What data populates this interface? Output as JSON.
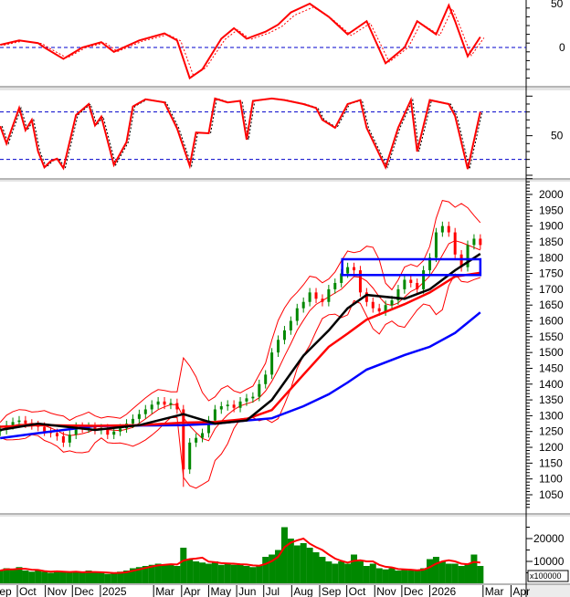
{
  "chart_data": [
    {
      "type": "candlestick",
      "panel": "price",
      "dates": [
        "2024-09-12",
        "2024-09-19",
        "2024-09-26",
        "2024-10-03",
        "2024-10-10",
        "2024-10-17",
        "2024-10-24",
        "2024-10-31",
        "2024-11-07",
        "2024-11-14",
        "2024-11-21",
        "2024-11-28",
        "2024-12-05",
        "2024-12-12",
        "2024-12-19",
        "2024-12-26",
        "2025-01-02",
        "2025-01-09",
        "2025-01-16",
        "2025-01-23",
        "2025-01-30",
        "2025-02-06",
        "2025-02-13",
        "2025-02-20",
        "2025-02-27",
        "2025-03-06",
        "2025-03-13",
        "2025-03-20",
        "2025-03-27",
        "2025-04-03",
        "2025-04-10",
        "2025-04-17",
        "2025-04-24",
        "2025-05-01",
        "2025-05-08",
        "2025-05-15",
        "2025-05-22",
        "2025-05-29",
        "2025-06-05",
        "2025-06-12",
        "2025-06-19",
        "2025-06-26",
        "2025-07-03",
        "2025-07-10",
        "2025-07-17",
        "2025-07-24",
        "2025-07-31",
        "2025-08-07",
        "2025-08-14",
        "2025-08-21",
        "2025-08-28",
        "2025-09-04",
        "2025-09-11",
        "2025-09-18",
        "2025-09-25",
        "2025-10-02",
        "2025-10-09",
        "2025-10-16",
        "2025-10-23",
        "2025-10-30",
        "2025-11-06",
        "2025-11-13",
        "2025-11-20",
        "2025-11-27",
        "2025-12-04",
        "2025-12-11",
        "2025-12-18",
        "2025-12-25",
        "2026-01-01",
        "2026-01-08",
        "2026-01-15",
        "2026-01-22",
        "2026-01-29",
        "2026-02-05",
        "2026-02-12",
        "2026-02-19",
        "2026-02-26"
      ],
      "close": [
        1255,
        1270,
        1280,
        1285,
        1275,
        1270,
        1265,
        1250,
        1245,
        1235,
        1215,
        1240,
        1265,
        1260,
        1265,
        1255,
        1260,
        1240,
        1250,
        1260,
        1275,
        1290,
        1305,
        1320,
        1335,
        1345,
        1335,
        1340,
        1320,
        1130,
        1215,
        1230,
        1245,
        1285,
        1320,
        1330,
        1335,
        1325,
        1345,
        1355,
        1360,
        1400,
        1430,
        1500,
        1540,
        1570,
        1600,
        1640,
        1660,
        1690,
        1670,
        1660,
        1700,
        1720,
        1750,
        1770,
        1760,
        1690,
        1660,
        1640,
        1630,
        1650,
        1665,
        1700,
        1730,
        1720,
        1700,
        1760,
        1800,
        1880,
        1900,
        1880,
        1810,
        1770,
        1840,
        1860,
        1840
      ],
      "moving_averages": [
        {
          "color": "#000000",
          "points": [
            [
              "2024-09-12",
              1255
            ],
            [
              "2024-10-24",
              1275
            ],
            [
              "2024-12-26",
              1255
            ],
            [
              "2025-02-13",
              1270
            ],
            [
              "2025-04-03",
              1305
            ],
            [
              "2025-05-08",
              1275
            ],
            [
              "2025-06-12",
              1285
            ],
            [
              "2025-07-10",
              1350
            ],
            [
              "2025-08-14",
              1490
            ],
            [
              "2025-09-11",
              1570
            ],
            [
              "2025-10-02",
              1640
            ],
            [
              "2025-10-23",
              1682
            ],
            [
              "2025-12-04",
              1670
            ],
            [
              "2026-01-01",
              1700
            ],
            [
              "2026-01-29",
              1760
            ],
            [
              "2026-02-26",
              1812
            ]
          ]
        },
        {
          "color": "#ff0000",
          "points": [
            [
              "2024-09-12",
              1265
            ],
            [
              "2024-10-24",
              1270
            ],
            [
              "2024-12-26",
              1268
            ],
            [
              "2025-02-13",
              1270
            ],
            [
              "2025-04-03",
              1278
            ],
            [
              "2025-05-08",
              1280
            ],
            [
              "2025-06-12",
              1290
            ],
            [
              "2025-07-10",
              1318
            ],
            [
              "2025-08-14",
              1430
            ],
            [
              "2025-09-11",
              1518
            ],
            [
              "2025-10-02",
              1560
            ],
            [
              "2025-10-23",
              1604
            ],
            [
              "2025-12-04",
              1653
            ],
            [
              "2026-01-01",
              1690
            ],
            [
              "2026-01-29",
              1740
            ],
            [
              "2026-02-26",
              1752
            ]
          ]
        },
        {
          "color": "#0000ff",
          "points": [
            [
              "2024-09-12",
              1229
            ],
            [
              "2024-10-24",
              1245
            ],
            [
              "2024-12-26",
              1267
            ],
            [
              "2025-02-13",
              1269
            ],
            [
              "2025-04-03",
              1270
            ],
            [
              "2025-05-08",
              1275
            ],
            [
              "2025-06-12",
              1285
            ],
            [
              "2025-07-10",
              1292
            ],
            [
              "2025-08-14",
              1330
            ],
            [
              "2025-09-11",
              1368
            ],
            [
              "2025-10-02",
              1405
            ],
            [
              "2025-10-23",
              1446
            ],
            [
              "2025-12-04",
              1492
            ],
            [
              "2026-01-01",
              1518
            ],
            [
              "2026-01-29",
              1562
            ],
            [
              "2026-02-26",
              1627
            ]
          ]
        }
      ],
      "bollinger_color": "#ff0000",
      "up_color": "#008800",
      "down_color": "#ff0000",
      "annotation_box": {
        "color": "#0000ff",
        "date_range": [
          "2025-09-26",
          "2026-02-26"
        ],
        "price_range": [
          1745,
          1795
        ]
      },
      "ylim": [
        1000,
        2050
      ],
      "yticks": [
        "2000",
        "1950",
        "1900",
        "1850",
        "1800",
        "1750",
        "1700",
        "1650",
        "1600",
        "1550",
        "1500",
        "1450",
        "1400",
        "1350",
        "1300",
        "1250",
        "1200",
        "1150",
        "1100",
        "1050"
      ]
    },
    {
      "type": "line",
      "panel": "oscillator-top",
      "color": "#ff0000",
      "signal_style": "dashed",
      "reference_line": 0,
      "reference_color": "#0000cc",
      "yticks": [
        "50",
        "0"
      ],
      "points": [
        [
          "2024-09-12",
          3
        ],
        [
          "2024-10-03",
          8
        ],
        [
          "2024-10-24",
          5
        ],
        [
          "2024-10-31",
          0
        ],
        [
          "2024-11-21",
          -13
        ],
        [
          "2024-12-12",
          0
        ],
        [
          "2025-01-02",
          6
        ],
        [
          "2025-01-16",
          -5
        ],
        [
          "2025-02-13",
          8
        ],
        [
          "2025-03-13",
          16
        ],
        [
          "2025-03-27",
          8
        ],
        [
          "2025-04-10",
          -35
        ],
        [
          "2025-04-24",
          -25
        ],
        [
          "2025-05-15",
          10
        ],
        [
          "2025-05-29",
          22
        ],
        [
          "2025-06-12",
          10
        ],
        [
          "2025-07-03",
          18
        ],
        [
          "2025-07-17",
          26
        ],
        [
          "2025-07-31",
          40
        ],
        [
          "2025-08-21",
          50
        ],
        [
          "2025-09-11",
          35
        ],
        [
          "2025-10-02",
          15
        ],
        [
          "2025-10-23",
          30
        ],
        [
          "2025-11-13",
          -18
        ],
        [
          "2025-12-04",
          0
        ],
        [
          "2025-12-18",
          30
        ],
        [
          "2026-01-08",
          15
        ],
        [
          "2026-01-22",
          48
        ],
        [
          "2026-01-29",
          30
        ],
        [
          "2026-02-12",
          -10
        ],
        [
          "2026-02-26",
          12
        ]
      ]
    },
    {
      "type": "line",
      "panel": "oscillator-bottom",
      "color": "#ff0000",
      "signal_color": "#000000",
      "reference_lines": [
        20,
        80
      ],
      "reference_color": "#0000cc",
      "ylim": [
        0,
        100
      ],
      "yticks": [
        "50"
      ],
      "points": [
        [
          "2024-09-12",
          62
        ],
        [
          "2024-09-19",
          40
        ],
        [
          "2024-10-03",
          85
        ],
        [
          "2024-10-10",
          57
        ],
        [
          "2024-10-17",
          70
        ],
        [
          "2024-10-24",
          30
        ],
        [
          "2024-10-31",
          10
        ],
        [
          "2024-11-07",
          18
        ],
        [
          "2024-11-14",
          21
        ],
        [
          "2024-11-21",
          9
        ],
        [
          "2024-12-05",
          76
        ],
        [
          "2024-12-19",
          90
        ],
        [
          "2024-12-26",
          63
        ],
        [
          "2025-01-02",
          74
        ],
        [
          "2025-01-16",
          13
        ],
        [
          "2025-01-30",
          42
        ],
        [
          "2025-02-06",
          87
        ],
        [
          "2025-02-20",
          96
        ],
        [
          "2025-03-13",
          92
        ],
        [
          "2025-03-27",
          59
        ],
        [
          "2025-04-10",
          12
        ],
        [
          "2025-04-17",
          54
        ],
        [
          "2025-05-01",
          53
        ],
        [
          "2025-05-08",
          97
        ],
        [
          "2025-05-22",
          92
        ],
        [
          "2025-06-05",
          94
        ],
        [
          "2025-06-12",
          45
        ],
        [
          "2025-06-19",
          94
        ],
        [
          "2025-07-10",
          97
        ],
        [
          "2025-07-24",
          95
        ],
        [
          "2025-08-14",
          90
        ],
        [
          "2025-08-28",
          85
        ],
        [
          "2025-09-04",
          70
        ],
        [
          "2025-09-18",
          60
        ],
        [
          "2025-10-02",
          90
        ],
        [
          "2025-10-16",
          95
        ],
        [
          "2025-10-23",
          60
        ],
        [
          "2025-11-13",
          10
        ],
        [
          "2025-11-27",
          60
        ],
        [
          "2025-12-11",
          95
        ],
        [
          "2025-12-18",
          30
        ],
        [
          "2026-01-01",
          95
        ],
        [
          "2026-01-22",
          90
        ],
        [
          "2026-01-29",
          75
        ],
        [
          "2026-02-12",
          8
        ],
        [
          "2026-02-26",
          80
        ]
      ]
    },
    {
      "type": "bar",
      "panel": "volume",
      "bar_color": "#008800",
      "ma_color": "#ff0000",
      "unit": "x100000",
      "yticks": [
        "20000",
        "10000"
      ],
      "values": [
        6000,
        7000,
        6500,
        7500,
        6000,
        5500,
        6000,
        5500,
        5000,
        6000,
        5500,
        5000,
        5500,
        5000,
        6000,
        5000,
        5000,
        4500,
        5000,
        5500,
        6000,
        7000,
        7500,
        8000,
        8500,
        9000,
        8500,
        9000,
        8000,
        16000,
        11000,
        10000,
        9500,
        9000,
        10000,
        8500,
        9000,
        8500,
        9000,
        8000,
        7500,
        8000,
        12000,
        13000,
        15000,
        25000,
        20000,
        17000,
        18000,
        16000,
        14000,
        12000,
        10000,
        9000,
        10000,
        9000,
        13000,
        10000,
        8000,
        9000,
        7000,
        6500,
        7000,
        6000,
        6500,
        6000,
        6000,
        7000,
        11000,
        12000,
        10000,
        9000,
        9000,
        8000,
        9000,
        13000,
        8000
      ]
    }
  ],
  "x_axis": {
    "labels": [
      {
        "text": "Sep",
        "date": "2024-09-01"
      },
      {
        "text": "Oct",
        "date": "2024-10-01"
      },
      {
        "text": "Nov",
        "date": "2024-11-01"
      },
      {
        "text": "Dec",
        "date": "2024-12-01"
      },
      {
        "text": "2025",
        "date": "2025-01-01"
      },
      {
        "text": "Mar",
        "date": "2025-03-01"
      },
      {
        "text": "Apr",
        "date": "2025-04-01"
      },
      {
        "text": "May",
        "date": "2025-05-01"
      },
      {
        "text": "Jun",
        "date": "2025-06-01"
      },
      {
        "text": "Jul",
        "date": "2025-07-01"
      },
      {
        "text": "Aug",
        "date": "2025-08-01"
      },
      {
        "text": "Sep",
        "date": "2025-09-01"
      },
      {
        "text": "Oct",
        "date": "2025-10-01"
      },
      {
        "text": "Nov",
        "date": "2025-11-01"
      },
      {
        "text": "Dec",
        "date": "2025-12-01"
      },
      {
        "text": "2026",
        "date": "2026-01-01"
      },
      {
        "text": "Mar",
        "date": "2026-03-01"
      },
      {
        "text": "Apr",
        "date": "2026-04-01"
      }
    ]
  }
}
